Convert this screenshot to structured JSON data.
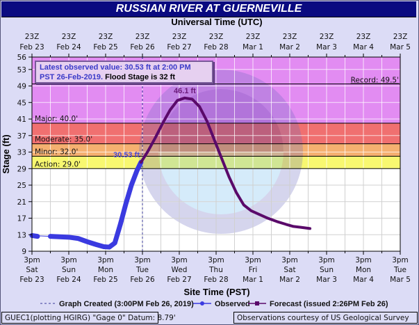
{
  "title": "RUSSIAN RIVER AT GUERNEVILLE",
  "top_axis_title": "Universal Time (UTC)",
  "bottom_axis_title": "Site Time (PST)",
  "y_axis_title": "Stage (ft)",
  "info_box": {
    "line1_blue": "Latest observed value: 30.53  ft at 2:00 PM",
    "line2_blue": "PST 26-Feb-2019.",
    "line2_black": " Flood Stage is 32  ft"
  },
  "legend": {
    "graph_created": "Graph Created (3:00PM Feb 26, 2019)",
    "observed": "Observed",
    "forecast": "Forecast (issued 2:26PM Feb 26)"
  },
  "footer": {
    "left": "GUEC1(plotting HGIRG) \"Gage 0\" Datum: 8.79'",
    "right": "Observations courtesy of US Geological Survey"
  },
  "colors": {
    "title_bar": "#0a0a80",
    "background": "#dcdcf6",
    "major": "#e28cf2",
    "moderate": "#f07070",
    "minor": "#f5b070",
    "action": "#f8f870",
    "normal": "#ffffff",
    "observed": "#3a3ae0",
    "forecast": "#5a0a6a"
  },
  "chart_data": {
    "type": "line",
    "title": "RUSSIAN RIVER AT GUERNEVILLE",
    "xlabel": "Site Time (PST)",
    "ylabel": "Stage (ft)",
    "x2label": "Universal Time (UTC)",
    "ylim": [
      9,
      56
    ],
    "y_ticks": [
      9,
      13,
      17,
      21,
      25,
      29,
      33,
      37,
      41,
      45,
      49,
      53,
      56
    ],
    "x_ticks_bottom": [
      {
        "time": "3pm",
        "day": "Sat",
        "date": "Feb 23"
      },
      {
        "time": "3pm",
        "day": "Sun",
        "date": "Feb 24"
      },
      {
        "time": "3pm",
        "day": "Mon",
        "date": "Feb 25"
      },
      {
        "time": "3pm",
        "day": "Tue",
        "date": "Feb 26"
      },
      {
        "time": "3pm",
        "day": "Wed",
        "date": "Feb 27"
      },
      {
        "time": "3pm",
        "day": "Thu",
        "date": "Feb 28"
      },
      {
        "time": "3pm",
        "day": "Fri",
        "date": "Mar 1"
      },
      {
        "time": "3pm",
        "day": "Sat",
        "date": "Mar 2"
      },
      {
        "time": "3pm",
        "day": "Sun",
        "date": "Mar 3"
      },
      {
        "time": "3pm",
        "day": "Mon",
        "date": "Mar 4"
      },
      {
        "time": "3pm",
        "day": "Tue",
        "date": "Mar 5"
      }
    ],
    "x_ticks_top": [
      {
        "time": "23Z",
        "date": "Feb 23"
      },
      {
        "time": "23Z",
        "date": "Feb 24"
      },
      {
        "time": "23Z",
        "date": "Feb 25"
      },
      {
        "time": "23Z",
        "date": "Feb 26"
      },
      {
        "time": "23Z",
        "date": "Feb 27"
      },
      {
        "time": "23Z",
        "date": "Feb 28"
      },
      {
        "time": "23Z",
        "date": "Mar 1"
      },
      {
        "time": "23Z",
        "date": "Mar 2"
      },
      {
        "time": "23Z",
        "date": "Mar 3"
      },
      {
        "time": "23Z",
        "date": "Mar 4"
      },
      {
        "time": "23Z",
        "date": "Mar 5"
      }
    ],
    "flood_categories": [
      {
        "name": "Record",
        "label": "Record: 49.5'",
        "stage": 49.5
      },
      {
        "name": "Major",
        "label": "Major: 40.0'",
        "stage": 40.0
      },
      {
        "name": "Moderate",
        "label": "Moderate: 35.0'",
        "stage": 35.0
      },
      {
        "name": "Minor",
        "label": "Minor: 32.0'",
        "stage": 32.0
      },
      {
        "name": "Action",
        "label": "Action: 29.0'",
        "stage": 29.0
      }
    ],
    "graph_created_day": 3.0,
    "series": [
      {
        "name": "Observed",
        "x_days_from_feb23_3pm": [
          0.0,
          0.15,
          0.5,
          0.75,
          1.0,
          1.25,
          1.5,
          1.75,
          1.95,
          2.1,
          2.25,
          2.4,
          2.55,
          2.7,
          2.85,
          2.96
        ],
        "values": [
          12.8,
          12.6,
          12.6,
          12.5,
          12.4,
          12.1,
          11.3,
          10.6,
          10.1,
          10.0,
          11.0,
          15.5,
          20.5,
          25.0,
          28.5,
          30.53
        ]
      },
      {
        "name": "Forecast",
        "x_days_from_feb23_3pm": [
          2.96,
          3.15,
          3.35,
          3.55,
          3.75,
          3.95,
          4.15,
          4.35,
          4.55,
          4.75,
          4.95,
          5.15,
          5.35,
          5.55,
          5.75,
          5.95,
          6.15,
          6.4,
          6.65,
          6.9,
          7.1,
          7.3,
          7.55
        ],
        "values": [
          30.53,
          33.2,
          36.5,
          40.0,
          43.2,
          45.5,
          46.1,
          45.8,
          44.0,
          40.5,
          36.0,
          31.5,
          27.0,
          23.2,
          20.2,
          18.8,
          18.0,
          17.0,
          16.2,
          15.5,
          15.0,
          14.8,
          14.5
        ]
      }
    ],
    "annotations": [
      {
        "text": "30.53 ft",
        "x": 2.96,
        "y": 30.53,
        "series": "Observed"
      },
      {
        "text": "46.1 ft",
        "x": 4.15,
        "y": 46.1,
        "series": "Forecast"
      }
    ],
    "grid": true,
    "legend_position": "bottom"
  }
}
